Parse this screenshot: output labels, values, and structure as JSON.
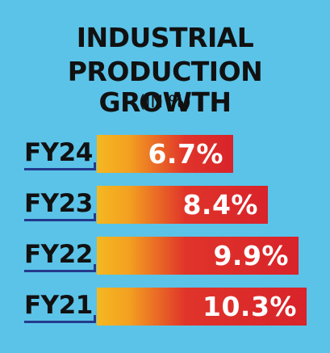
{
  "chart_data": {
    "type": "bar",
    "orientation": "horizontal",
    "title": "INDUSTRIAL PRODUCTION GROWTH",
    "subtitle": "(IN %)",
    "categories": [
      "FY24",
      "FY23",
      "FY22",
      "FY21"
    ],
    "values": [
      6.7,
      8.4,
      9.9,
      10.3
    ],
    "value_labels": [
      "6.7%",
      "8.4%",
      "9.9%",
      "10.3%"
    ],
    "xlim": [
      0,
      10.3
    ],
    "grid": false,
    "colors": {
      "background": "#5bc3e8",
      "bar_start": "#f5b820",
      "bar_end": "#d8232a",
      "underline": "#233a8c"
    }
  }
}
